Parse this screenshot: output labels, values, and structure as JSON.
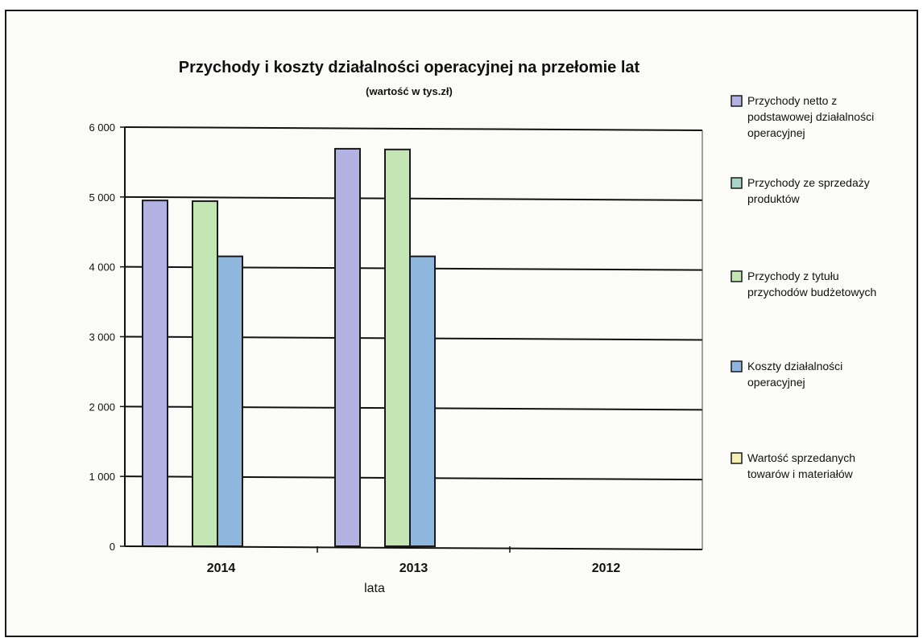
{
  "chart_data": {
    "type": "bar",
    "title": "Przychody i koszty działalności operacyjnej na przełomie lat",
    "subtitle": "(wartość w tys.zł)",
    "xlabel": "lata",
    "ylabel": "",
    "ylim": [
      0,
      6000
    ],
    "yticks": [
      "0",
      "1 000",
      "2 000",
      "3 000",
      "4 000",
      "5 000",
      "6 000"
    ],
    "categories": [
      "2014",
      "2013",
      "2012"
    ],
    "grid": true,
    "legend_position": "right",
    "series": [
      {
        "name": "Przychody netto z podstawowej działalności operacyjnej",
        "legend_lines": [
          "Przychody netto z",
          "podstawowej działalności",
          "operacyjnej"
        ],
        "color": "#b3b3e3",
        "values": [
          4950,
          5690,
          0
        ]
      },
      {
        "name": "Przychody ze sprzedaży produktów",
        "legend_lines": [
          "Przychody ze sprzedaży",
          "produktów"
        ],
        "color": "#a9d4c8",
        "values": [
          0,
          0,
          0
        ]
      },
      {
        "name": "Przychody z tytułu przychodów budżetowych",
        "legend_lines": [
          "Przychody z tytułu",
          "przychodów budżetowych"
        ],
        "color": "#c4e6b4",
        "values": [
          4940,
          5680,
          0
        ]
      },
      {
        "name": "Koszty działalności operacyjnej",
        "legend_lines": [
          "Koszty działalności",
          "operacyjnej"
        ],
        "color": "#8fb6dc",
        "values": [
          4150,
          4150,
          0
        ]
      },
      {
        "name": "Wartość sprzedanych towarów i materiałów",
        "legend_lines": [
          "Wartość sprzedanych",
          "towarów i materiałów"
        ],
        "color": "#f6f0b4",
        "values": [
          0,
          0,
          0
        ]
      }
    ]
  }
}
